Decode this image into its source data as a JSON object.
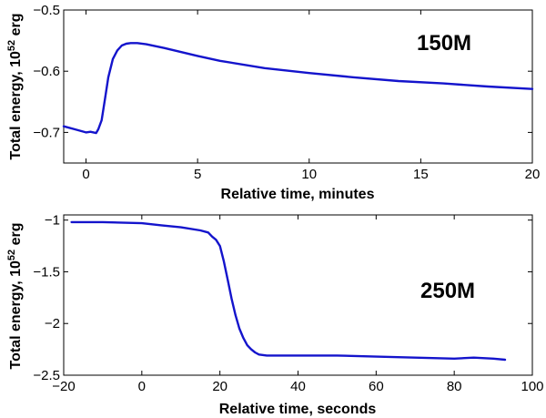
{
  "chart_data": [
    {
      "type": "line",
      "annotation": "150M",
      "xlabel": "Relative time, minutes",
      "ylabel_main": "Total energy, 10",
      "ylabel_sup": "52",
      "ylabel_unit": " erg",
      "xlim": [
        -1,
        20
      ],
      "ylim": [
        -0.75,
        -0.5
      ],
      "xticks": [
        0,
        5,
        10,
        15,
        20
      ],
      "yticks": [
        -0.7,
        -0.6,
        -0.5
      ],
      "series_color": "#1414cc",
      "series": [
        {
          "name": "150M",
          "x": [
            -1,
            -0.5,
            0,
            0.2,
            0.45,
            0.55,
            0.7,
            0.85,
            1.0,
            1.2,
            1.4,
            1.6,
            1.8,
            2.0,
            2.3,
            2.7,
            3.5,
            5,
            6,
            8,
            10,
            12,
            14,
            16,
            18,
            20
          ],
          "y": [
            -0.69,
            -0.695,
            -0.7,
            -0.699,
            -0.701,
            -0.695,
            -0.68,
            -0.645,
            -0.61,
            -0.58,
            -0.566,
            -0.558,
            -0.555,
            -0.554,
            -0.554,
            -0.556,
            -0.562,
            -0.575,
            -0.583,
            -0.595,
            -0.603,
            -0.61,
            -0.616,
            -0.62,
            -0.625,
            -0.629
          ]
        }
      ]
    },
    {
      "type": "line",
      "annotation": "250M",
      "xlabel": "Relative time, seconds",
      "ylabel_main": "Total energy, 10",
      "ylabel_sup": "52",
      "ylabel_unit": " erg",
      "xlim": [
        -20,
        100
      ],
      "ylim": [
        -2.5,
        -0.95
      ],
      "xticks": [
        -20,
        0,
        20,
        40,
        60,
        80,
        100
      ],
      "yticks": [
        -2.5,
        -2,
        -1.5,
        -1
      ],
      "series_color": "#1414cc",
      "series": [
        {
          "name": "250M",
          "x": [
            -18,
            -10,
            0,
            5,
            10,
            15,
            17,
            18,
            19,
            20,
            21,
            22,
            23,
            24,
            25,
            26,
            27,
            28,
            29,
            30,
            32,
            35,
            40,
            50,
            60,
            70,
            80,
            85,
            90,
            93
          ],
          "y": [
            -1.02,
            -1.02,
            -1.03,
            -1.05,
            -1.07,
            -1.1,
            -1.12,
            -1.16,
            -1.19,
            -1.25,
            -1.4,
            -1.58,
            -1.76,
            -1.92,
            -2.05,
            -2.14,
            -2.21,
            -2.25,
            -2.28,
            -2.3,
            -2.31,
            -2.31,
            -2.31,
            -2.31,
            -2.32,
            -2.33,
            -2.34,
            -2.33,
            -2.34,
            -2.35
          ]
        }
      ]
    }
  ]
}
